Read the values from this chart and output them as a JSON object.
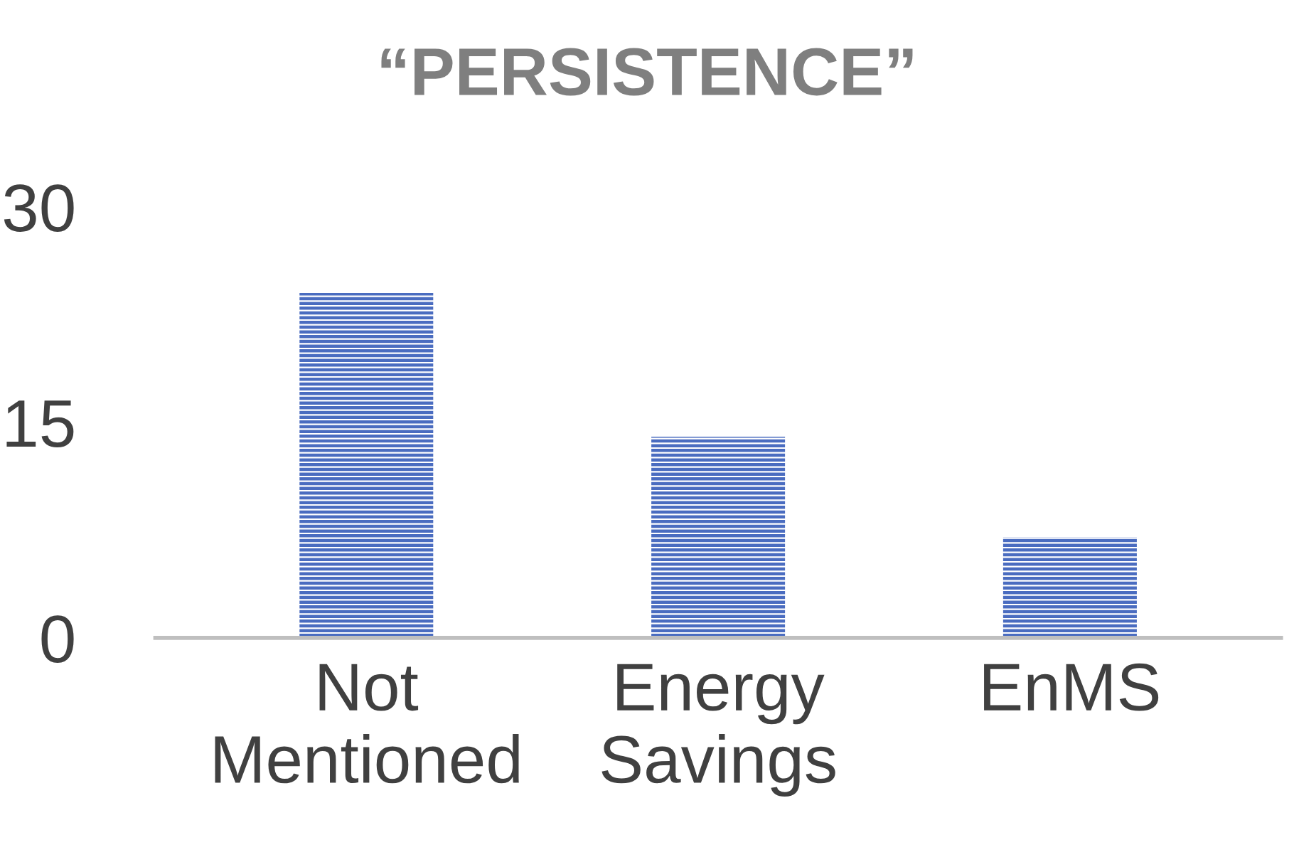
{
  "chart_data": {
    "type": "bar",
    "title": "“PERSISTENCE”",
    "categories": [
      "Not\nMentioned",
      "Energy\nSavings",
      "EnMS"
    ],
    "values": [
      24,
      14,
      7
    ],
    "color": "#4a6cc0",
    "ylim": [
      0,
      30
    ],
    "yticks": [
      0,
      15,
      30
    ],
    "grid": false,
    "legend": false
  }
}
